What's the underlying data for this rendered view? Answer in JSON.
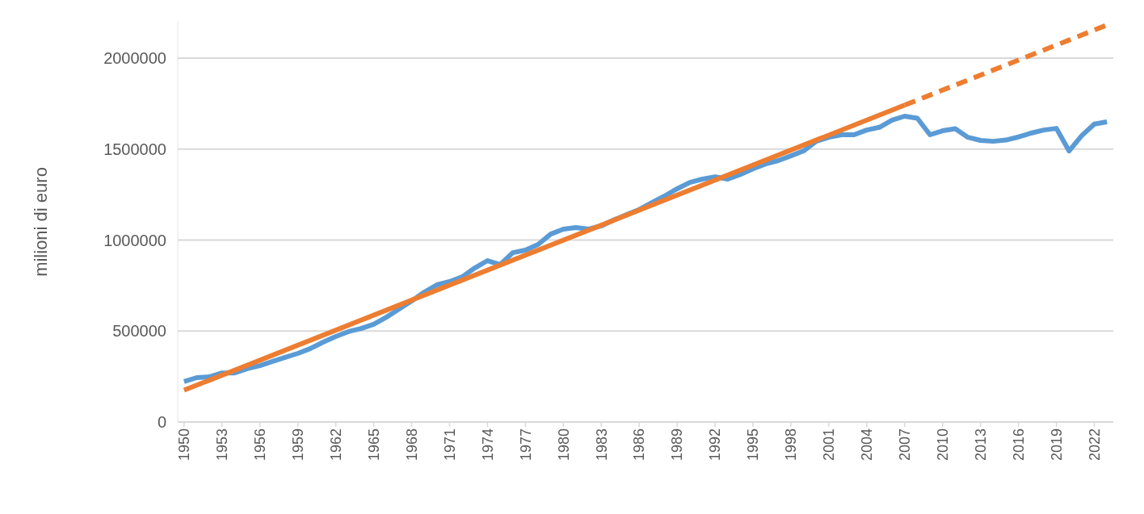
{
  "chart_data": {
    "type": "line",
    "ylabel": "milioni di euro",
    "xlim": [
      1949.5,
      2023.5
    ],
    "xticks": [
      1950,
      1953,
      1956,
      1959,
      1962,
      1965,
      1968,
      1971,
      1974,
      1977,
      1980,
      1983,
      1986,
      1989,
      1992,
      1995,
      1998,
      2001,
      2004,
      2007,
      2010,
      2013,
      2016,
      2019,
      2022
    ],
    "ylim": [
      0,
      2200000
    ],
    "yticks": [
      0,
      500000,
      1000000,
      1500000,
      2000000
    ],
    "grid": "y",
    "series": [
      {
        "color": "#5b9bd5",
        "line_style": "solid",
        "x": [
          1950,
          1951,
          1952,
          1953,
          1954,
          1955,
          1956,
          1957,
          1958,
          1959,
          1960,
          1961,
          1962,
          1963,
          1964,
          1965,
          1966,
          1967,
          1968,
          1969,
          1970,
          1971,
          1972,
          1973,
          1974,
          1975,
          1976,
          1977,
          1978,
          1979,
          1980,
          1981,
          1982,
          1983,
          1984,
          1985,
          1986,
          1987,
          1988,
          1989,
          1990,
          1991,
          1992,
          1993,
          1994,
          1995,
          1996,
          1997,
          1998,
          1999,
          2000,
          2001,
          2002,
          2003,
          2004,
          2005,
          2006,
          2007,
          2008,
          2009,
          2010,
          2011,
          2012,
          2013,
          2014,
          2015,
          2016,
          2017,
          2018,
          2019,
          2020,
          2021,
          2022,
          2023
        ],
        "values": [
          222000,
          244000,
          248000,
          270000,
          270000,
          293000,
          310000,
          333000,
          355000,
          377000,
          404000,
          439000,
          470000,
          497000,
          514000,
          537000,
          576000,
          621000,
          665000,
          714000,
          754000,
          772000,
          798000,
          847000,
          887000,
          865000,
          931000,
          945000,
          976000,
          1033000,
          1060000,
          1069000,
          1060000,
          1078000,
          1111000,
          1140000,
          1168000,
          1206000,
          1242000,
          1282000,
          1317000,
          1335000,
          1348000,
          1335000,
          1361000,
          1392000,
          1419000,
          1437000,
          1463000,
          1490000,
          1543000,
          1565000,
          1579000,
          1579000,
          1605000,
          1620000,
          1659000,
          1681000,
          1670000,
          1579000,
          1601000,
          1612000,
          1565000,
          1548000,
          1543000,
          1550000,
          1567000,
          1588000,
          1605000,
          1614000,
          1490000,
          1574000,
          1638000,
          1650000
        ]
      },
      {
        "color": "#ed7d31",
        "line_style": "solid",
        "x": [
          1950,
          2007
        ],
        "values": [
          175000,
          1742000
        ]
      },
      {
        "color": "#ed7d31",
        "line_style": "dashed",
        "x": [
          2007,
          2023
        ],
        "values": [
          1742000,
          2182000
        ]
      }
    ]
  }
}
